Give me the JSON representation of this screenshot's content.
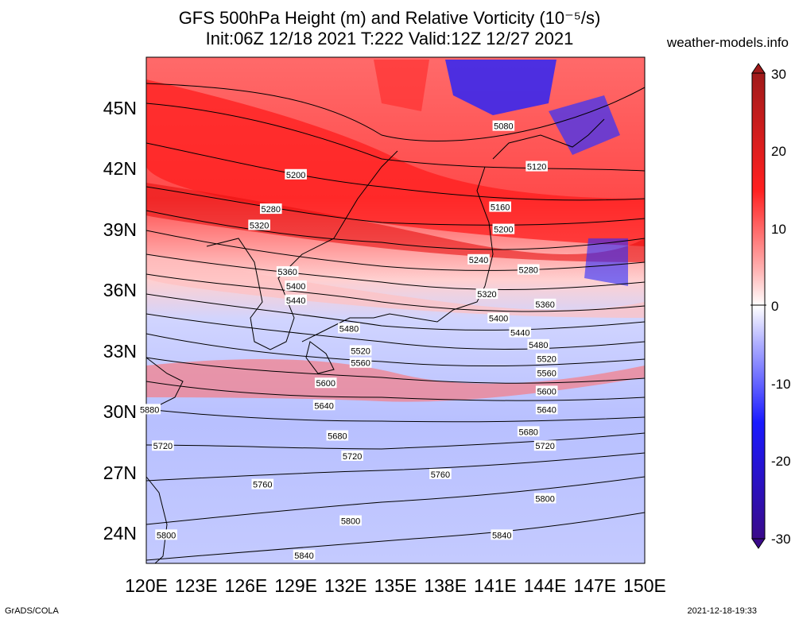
{
  "title_line1": "GFS 500hPa Height (m) and Relative Vorticity (10⁻⁵/s)",
  "title_line2": "Init:06Z 12/18 2021 T:222 Valid:12Z 12/27 2021",
  "site": "weather-models.info",
  "footer_left": "GrADS/COLA",
  "footer_right": "2021-12-18-19:33",
  "map": {
    "lon_range": [
      120,
      150
    ],
    "lat_range": [
      22.5,
      47.5
    ],
    "x_ticks": [
      "120E",
      "123E",
      "126E",
      "129E",
      "132E",
      "135E",
      "138E",
      "141E",
      "144E",
      "147E",
      "150E"
    ],
    "y_ticks": [
      "24N",
      "27N",
      "30N",
      "33N",
      "36N",
      "39N",
      "42N",
      "45N"
    ]
  },
  "colorbar": {
    "range": [
      -30,
      30
    ],
    "ticks": [
      "30",
      "20",
      "10",
      "0",
      "-10",
      "-20",
      "-30"
    ],
    "colors": {
      "max": "#a01a1a",
      "positive": "#ff2020",
      "zero": "#ffffff",
      "negative": "#1a1aff",
      "min": "#3a0a8a"
    }
  },
  "contour_labels": [
    "5080",
    "5120",
    "5160",
    "5200",
    "5240",
    "5280",
    "5320",
    "5360",
    "5400",
    "5440",
    "5480",
    "5520",
    "5560",
    "5600",
    "5640",
    "5680",
    "5720",
    "5760",
    "5800",
    "5840",
    "5880"
  ],
  "contours": [
    {
      "value": 5080,
      "label_lon": 141.5,
      "label_lat": 44.1
    },
    {
      "value": 5120,
      "label_lon": 143.5,
      "label_lat": 42.1
    },
    {
      "value": 5160,
      "label_lon": 141.3,
      "label_lat": 40.1
    },
    {
      "value": 5200,
      "label_lon": 129.0,
      "label_lat": 41.7
    },
    {
      "value": 5200,
      "label_lon": 141.5,
      "label_lat": 39.0
    },
    {
      "value": 5240,
      "label_lon": 140.0,
      "label_lat": 37.5
    },
    {
      "value": 5280,
      "label_lon": 127.5,
      "label_lat": 40.0
    },
    {
      "value": 5280,
      "label_lon": 143.0,
      "label_lat": 37.0
    },
    {
      "value": 5320,
      "label_lon": 126.8,
      "label_lat": 39.2
    },
    {
      "value": 5320,
      "label_lon": 140.5,
      "label_lat": 35.8
    },
    {
      "value": 5360,
      "label_lon": 128.5,
      "label_lat": 36.9
    },
    {
      "value": 5360,
      "label_lon": 144.0,
      "label_lat": 35.3
    },
    {
      "value": 5400,
      "label_lon": 129.0,
      "label_lat": 36.2
    },
    {
      "value": 5400,
      "label_lon": 141.2,
      "label_lat": 34.6
    },
    {
      "value": 5440,
      "label_lon": 129.0,
      "label_lat": 35.5
    },
    {
      "value": 5440,
      "label_lon": 142.5,
      "label_lat": 33.9
    },
    {
      "value": 5480,
      "label_lon": 132.2,
      "label_lat": 34.1
    },
    {
      "value": 5480,
      "label_lon": 143.6,
      "label_lat": 33.3
    },
    {
      "value": 5520,
      "label_lon": 132.9,
      "label_lat": 33.0
    },
    {
      "value": 5520,
      "label_lon": 144.1,
      "label_lat": 32.6
    },
    {
      "value": 5560,
      "label_lon": 132.9,
      "label_lat": 32.4
    },
    {
      "value": 5560,
      "label_lon": 144.1,
      "label_lat": 31.9
    },
    {
      "value": 5600,
      "label_lon": 130.8,
      "label_lat": 31.4
    },
    {
      "value": 5600,
      "label_lon": 144.1,
      "label_lat": 31.0
    },
    {
      "value": 5640,
      "label_lon": 130.7,
      "label_lat": 30.3
    },
    {
      "value": 5640,
      "label_lon": 144.1,
      "label_lat": 30.1
    },
    {
      "value": 5680,
      "label_lon": 131.5,
      "label_lat": 28.8
    },
    {
      "value": 5680,
      "label_lon": 143.0,
      "label_lat": 29.0
    },
    {
      "value": 5720,
      "label_lon": 121.0,
      "label_lat": 28.3
    },
    {
      "value": 5720,
      "label_lon": 132.4,
      "label_lat": 27.8
    },
    {
      "value": 5720,
      "label_lon": 144.0,
      "label_lat": 28.3
    },
    {
      "value": 5760,
      "label_lon": 127.0,
      "label_lat": 26.4
    },
    {
      "value": 5760,
      "label_lon": 137.7,
      "label_lat": 26.9
    },
    {
      "value": 5800,
      "label_lon": 121.2,
      "label_lat": 23.9
    },
    {
      "value": 5800,
      "label_lon": 132.3,
      "label_lat": 24.6
    },
    {
      "value": 5800,
      "label_lon": 144.0,
      "label_lat": 25.7
    },
    {
      "value": 5840,
      "label_lon": 129.5,
      "label_lat": 22.9
    },
    {
      "value": 5840,
      "label_lon": 141.4,
      "label_lat": 23.9
    },
    {
      "value": 5880,
      "label_lon": 120.2,
      "label_lat": 30.1
    }
  ]
}
